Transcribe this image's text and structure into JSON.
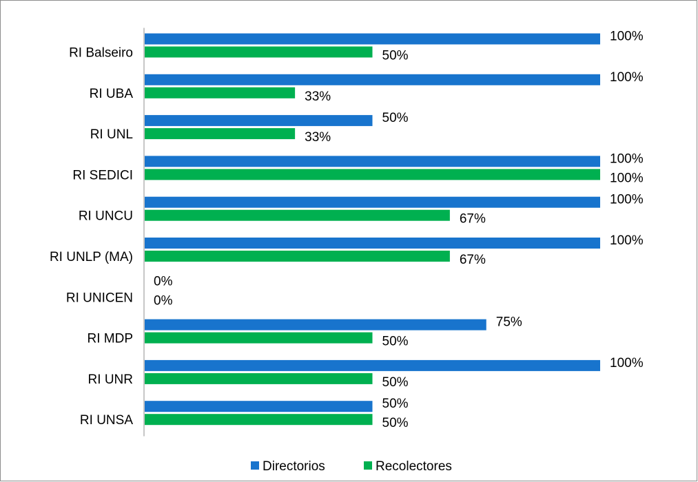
{
  "colors": {
    "directorios": "#1874CD",
    "recolectores": "#00B050",
    "axis": "#8c8c8c"
  },
  "chart_data": {
    "type": "bar",
    "orientation": "horizontal",
    "title": "",
    "xlabel": "",
    "ylabel": "",
    "xlim": [
      0,
      100
    ],
    "grid": false,
    "legend_position": "bottom",
    "categories": [
      "RI Balseiro",
      "RI UBA",
      "RI UNL",
      "RI SEDICI",
      "RI UNCU",
      "RI UNLP (MA)",
      "RI UNICEN",
      "RI MDP",
      "RI UNR",
      "RI UNSA"
    ],
    "series": [
      {
        "name": "Directorios",
        "values": [
          100,
          100,
          50,
          100,
          100,
          100,
          0,
          75,
          100,
          50
        ],
        "labels": [
          "100%",
          "100%",
          "50%",
          "100%",
          "100%",
          "100%",
          "0%",
          "75%",
          "100%",
          "50%"
        ]
      },
      {
        "name": "Recolectores",
        "values": [
          50,
          33,
          33,
          100,
          67,
          67,
          0,
          50,
          50,
          50
        ],
        "labels": [
          "50%",
          "33%",
          "33%",
          "100%",
          "67%",
          "67%",
          "0%",
          "50%",
          "50%",
          "50%"
        ]
      }
    ]
  }
}
